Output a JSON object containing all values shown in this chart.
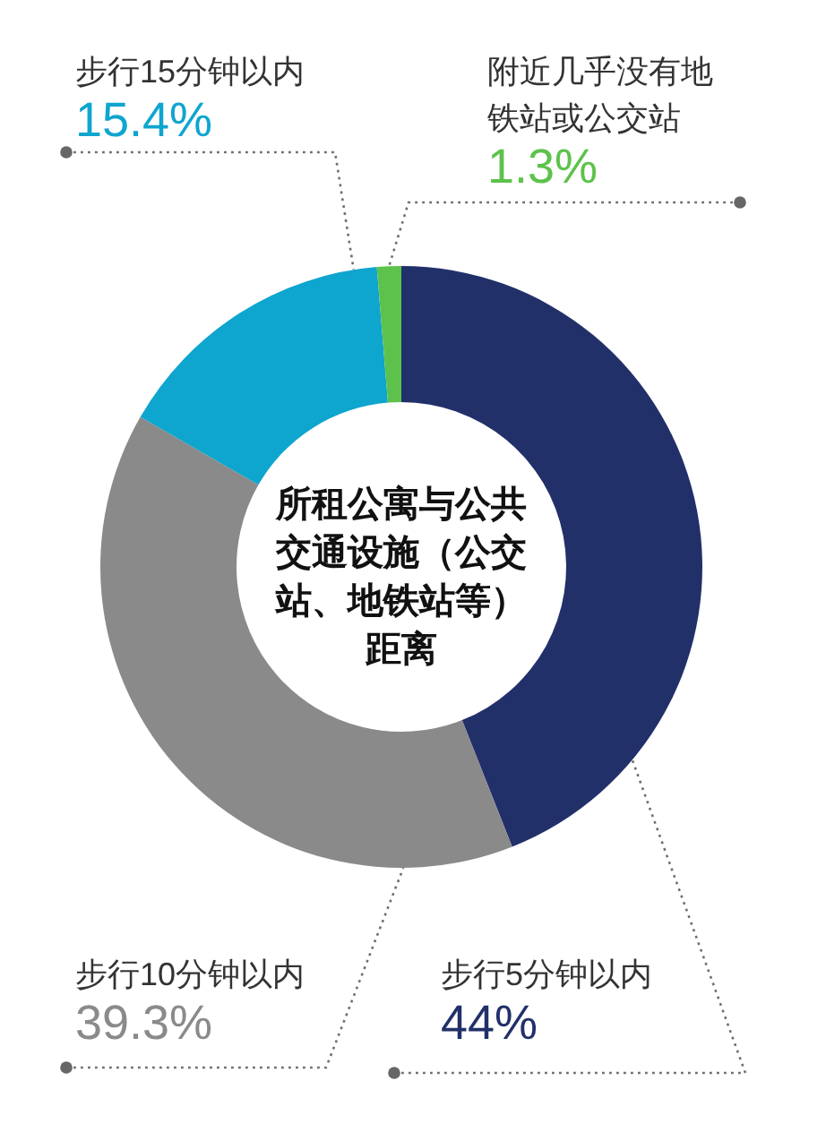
{
  "chart_data": {
    "type": "donut",
    "title": "所租公寓与公共交通设施（公交站、地铁站等）距离",
    "categories": [
      "步行5分钟以内",
      "步行10分钟以内",
      "步行15分钟以内",
      "附近几乎没有地铁站或公交站"
    ],
    "values": [
      44,
      39.3,
      15.4,
      1.3
    ],
    "colors": [
      "#22306a",
      "#8a8a8a",
      "#0ea5cf",
      "#5dc24b"
    ],
    "value_labels": [
      "44%",
      "39.3%",
      "15.4%",
      "1.3%"
    ]
  }
}
